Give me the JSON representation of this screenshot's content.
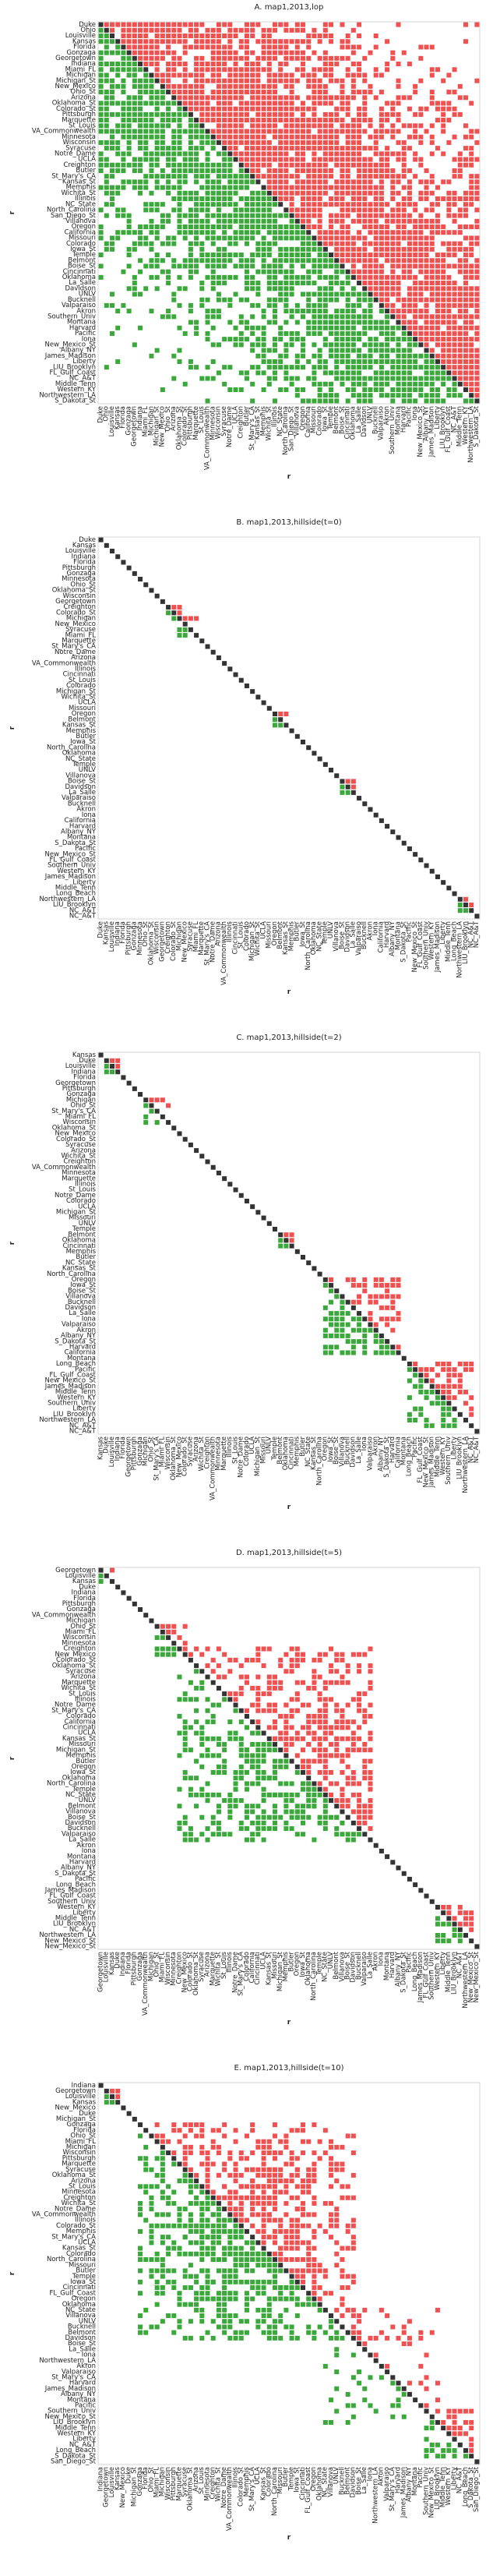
{
  "figure": {
    "panel_titles": [
      "A. map1,2013,lop",
      "B. map1,2013,hillside(t=0)",
      "C. map1,2013,hillside(t=2)",
      "D. map1,2013,hillside(t=5)",
      "E. map1,2013,hillside(t=10)"
    ]
  },
  "colors": {
    "above_diagonal": "#f05050",
    "below_diagonal": "#3aa83a",
    "diagonal": "#333333",
    "frame": "#cccccc"
  },
  "chart_data": [
    {
      "type": "heatmap",
      "title": "A. map1,2013,lop",
      "xlabel": "r",
      "ylabel": "r",
      "n": 68,
      "legend": "none",
      "grid": false,
      "tick_labels": [
        "Duke",
        "Ohio",
        "Louisville",
        "Kansas",
        "Florida",
        "Gonzaga",
        "Georgetown",
        "Indiana",
        "Miami_FL",
        "Michigan",
        "Michigan_St",
        "New_Mexico",
        "Ohio_St",
        "Arizona",
        "Oklahoma_St",
        "Colorado_St",
        "Pittsburgh",
        "Marquette",
        "St_Louis",
        "VA_Commonwealth",
        "Minnesota",
        "Wisconsin",
        "Syracuse",
        "Notre_Dame",
        "UCLA",
        "Creighton",
        "Butler",
        "St_Mary's_CA",
        "Kansas_St",
        "Memphis",
        "Wichita_St",
        "Illinois",
        "NC_State",
        "North_Carolina",
        "San_Diego_St",
        "Villanova",
        "Oregon",
        "California",
        "Missouri",
        "Colorado",
        "Iowa_St",
        "Temple",
        "Belmont",
        "Boise_St",
        "Cincinnati",
        "Oklahoma",
        "La_Salle",
        "Davidson",
        "UNLV",
        "Bucknell",
        "Valparaiso",
        "Akron",
        "Southern_Univ",
        "Montana",
        "Harvard",
        "Pacific",
        "Iona",
        "New_Mexico_St",
        "Albany_NY",
        "James_Madison",
        "Liberty",
        "LIU_Brooklyn",
        "FL_Gulf_Coast",
        "NC_A&T",
        "Middle_Tenn",
        "Western_KY",
        "Northwestern_LA",
        "S_Dakota_St"
      ],
      "pattern": "dense upper-triangle red / lower-triangle green matrix, density decreasing away from the diagonal"
    },
    {
      "type": "heatmap",
      "title": "B. map1,2013,hillside(t=0)",
      "xlabel": "r",
      "ylabel": "r",
      "n": 68,
      "legend": "none",
      "grid": false,
      "tick_labels": [
        "Duke",
        "Kansas",
        "Louisville",
        "Indiana",
        "Florida",
        "Pittsburgh",
        "Gonzaga",
        "Minnesota",
        "Ohio_St",
        "Oklahoma_St",
        "Wisconsin",
        "Georgetown",
        "Creighton",
        "Colorado_St",
        "Michigan",
        "New_Mexico",
        "Syracuse",
        "Miami_FL",
        "Marquette",
        "St_Mary's_CA",
        "Notre_Dame",
        "Arizona",
        "VA_Commonwealth",
        "Illinois",
        "Cincinnati",
        "St_Louis",
        "Colorado",
        "Michigan_St",
        "Wichita_St",
        "UCLA",
        "Missouri",
        "Oregon",
        "Belmont",
        "Kansas_St",
        "Memphis",
        "Butler",
        "Iowa_St",
        "North_Carolina",
        "Oklahoma",
        "NC_State",
        "Temple",
        "UNLV",
        "Villanova",
        "Boise_St",
        "Davidson",
        "La_Salle",
        "Valparaiso",
        "Bucknell",
        "Akron",
        "Iona",
        "California",
        "Harvard",
        "Albany_NY",
        "Montana",
        "S_Dakota_St",
        "Pacific",
        "New_Mexico_St",
        "FL_Gulf_Coast",
        "Southern_Univ",
        "Western_KY",
        "James_Madison",
        "Liberty",
        "Middle_Tenn",
        "Long_Beach",
        "Northwestern_LA",
        "LIU_Brooklyn",
        "NC_A&T",
        "NC_A&T"
      ],
      "pattern": "diagonal only, with a few small red/green clusters near rows 12-14, 31-33, 44 and 65"
    },
    {
      "type": "heatmap",
      "title": "C. map1,2013,hillside(t=2)",
      "xlabel": "r",
      "ylabel": "r",
      "n": 68,
      "legend": "none",
      "grid": false,
      "tick_labels": [
        "Kansas",
        "Duke",
        "Louisville",
        "Indiana",
        "Florida",
        "Georgetown",
        "Pittsburgh",
        "Gonzaga",
        "Michigan",
        "Ohio_St",
        "St_Mary's_CA",
        "Miami_FL",
        "Wisconsin",
        "Oklahoma_St",
        "New_Mexico",
        "Colorado_St",
        "Syracuse",
        "Arizona",
        "Wichita_St",
        "Creighton",
        "VA_Commonwealth",
        "Minnesota",
        "Marquette",
        "Illinois",
        "St_Louis",
        "Notre_Dame",
        "Colorado",
        "UCLA",
        "Michigan_St",
        "Missouri",
        "UNLV",
        "Temple",
        "Belmont",
        "Oklahoma",
        "Cincinnati",
        "Memphis",
        "Butler",
        "NC_State",
        "Kansas_St",
        "North_Carolina",
        "Oregon",
        "Iowa_St",
        "Boise_St",
        "Villanova",
        "Bucknell",
        "Davidson",
        "La_Salle",
        "Iona",
        "Valparaiso",
        "Akron",
        "Albany_NY",
        "S_Dakota_St",
        "Harvard",
        "California",
        "Montana",
        "Long_Beach",
        "Pacific",
        "FL_Gulf_Coast",
        "New_Mexico_St",
        "James_Madison",
        "Middle_Tenn",
        "Western_KY",
        "Southern_Univ",
        "Liberty",
        "LIU_Brooklyn",
        "Northwestern_LA",
        "NC_A&T",
        "NC_A&T"
      ],
      "pattern": "diagonal with small clusters near the top and two larger red/green blocks in the lower half"
    },
    {
      "type": "heatmap",
      "title": "D. map1,2013,hillside(t=5)",
      "xlabel": "r",
      "ylabel": "r",
      "n": 68,
      "legend": "none",
      "grid": false,
      "tick_labels": [
        "Georgetown",
        "Louisville",
        "Kansas",
        "Duke",
        "Indiana",
        "Florida",
        "Pittsburgh",
        "Gonzaga",
        "VA_Commonwealth",
        "Michigan",
        "Ohio_St",
        "Miami_FL",
        "Wisconsin",
        "Minnesota",
        "Creighton",
        "New_Mexico",
        "Colorado_St",
        "Oklahoma_St",
        "Syracuse",
        "Arizona",
        "Marquette",
        "Wichita_St",
        "St_Louis",
        "Illinois",
        "Notre_Dame",
        "St_Mary's_CA",
        "Colorado",
        "California",
        "Cincinnati",
        "UCLA",
        "Kansas_St",
        "Missouri",
        "Michigan_St",
        "Memphis",
        "Butler",
        "Oregon",
        "Iowa_St",
        "Oklahoma",
        "North_Carolina",
        "Temple",
        "NC_State",
        "UNLV",
        "Belmont",
        "Villanova",
        "Boise_St",
        "Davidson",
        "Bucknell",
        "Valparaiso",
        "La_Salle",
        "Akron",
        "Iona",
        "Montana",
        "Harvard",
        "Albany_NY",
        "S_Dakota_St",
        "Pacific",
        "Long_Beach",
        "James_Madison",
        "FL_Gulf_Coast",
        "Southern_Univ",
        "Western_KY",
        "Liberty",
        "Middle_Tenn",
        "LIU_Brooklyn",
        "NC_A&T",
        "Northwestern_LA",
        "New_Mexico_St",
        "New_Mexico_St"
      ],
      "pattern": "diagonal with a broad red/green band across the middle rows and a small block at the bottom"
    },
    {
      "type": "heatmap",
      "title": "E. map1,2013,hillside(t=10)",
      "xlabel": "r",
      "ylabel": "r",
      "n": 68,
      "legend": "none",
      "grid": false,
      "tick_labels": [
        "Indiana",
        "Georgetown",
        "Louisville",
        "Kansas",
        "New_Mexico",
        "Duke",
        "Michigan_St",
        "Gonzaga",
        "Florida",
        "Ohio_St",
        "Miami_FL",
        "Michigan",
        "Wisconsin",
        "Pittsburgh",
        "Marquette",
        "Syracuse",
        "Oklahoma_St",
        "Arizona",
        "St_Louis",
        "Minnesota",
        "Creighton",
        "Wichita_St",
        "Notre_Dame",
        "VA_Commonwealth",
        "Illinois",
        "Colorado_St",
        "Memphis",
        "St_Mary's_CA",
        "UCLA",
        "Kansas_St",
        "Colorado",
        "North_Carolina",
        "Missouri",
        "Butler",
        "Temple",
        "Iowa_St",
        "Cincinnati",
        "FL_Gulf_Coast",
        "Oregon",
        "Oklahoma",
        "NC_State",
        "Villanova",
        "UNLV",
        "Bucknell",
        "Belmont",
        "Davidson",
        "Boise_St",
        "La_Salle",
        "Iona",
        "Northwestern_LA",
        "Akron",
        "Valparaiso",
        "St_Mary's_CA",
        "Harvard",
        "James_Madison",
        "Albany_NY",
        "Montana",
        "Pacific",
        "Southern_Univ",
        "New_Mexico_St",
        "LIU_Brooklyn",
        "Middle_Tenn",
        "Western_KY",
        "Liberty",
        "NC_A&T",
        "Long_Beach",
        "S_Dakota_St",
        "San_Diego_St"
      ],
      "pattern": "diagonal with a wide red/green band across the top two-thirds and scattered cells lower down"
    }
  ]
}
